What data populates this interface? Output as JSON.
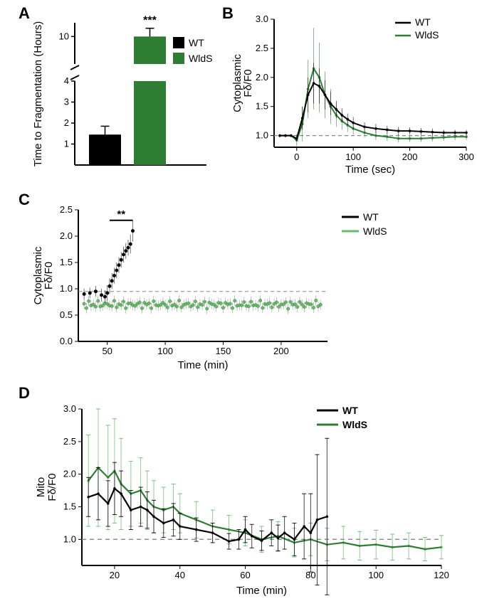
{
  "global": {
    "colors": {
      "wt": "#000000",
      "wlds": "#2e7d32",
      "wlds_light": "#66bb6a",
      "axis": "#000000",
      "grid_dash": "#888888",
      "bg": "#ffffff"
    },
    "fonts": {
      "panel_label": 22,
      "axis_label": 15,
      "tick": 13,
      "legend": 14
    }
  },
  "panelA": {
    "label": "A",
    "type": "bar",
    "title_y": "Time to Fragmentation (Hours)",
    "categories": [
      "WT",
      "WldS"
    ],
    "values": [
      1.45,
      10.0
    ],
    "errors": [
      0.4,
      0.6
    ],
    "bar_colors": [
      "#000000",
      "#2e7d32"
    ],
    "ylim_lower": [
      0,
      4
    ],
    "ylim_upper": [
      8,
      11
    ],
    "yticks_lower": [
      1,
      2,
      3,
      4
    ],
    "yticks_upper": [
      10
    ],
    "axis_break": true,
    "significance": "***",
    "legend": [
      "WT",
      "WldS"
    ]
  },
  "panelB": {
    "label": "B",
    "type": "line",
    "xlabel": "Time (sec)",
    "ylabel": "Cytoplasmic\nFδ/F0",
    "xlim": [
      -40,
      300
    ],
    "ylim": [
      0.8,
      3.0
    ],
    "xticks": [
      0,
      100,
      200,
      300
    ],
    "yticks": [
      1.0,
      1.5,
      2.0,
      2.5,
      3.0
    ],
    "baseline": 1.0,
    "legend": [
      "WT",
      "WldS"
    ],
    "series": {
      "WT": {
        "color": "#000000",
        "x": [
          -30,
          -20,
          -10,
          0,
          10,
          20,
          30,
          40,
          50,
          60,
          70,
          80,
          90,
          100,
          120,
          140,
          160,
          180,
          200,
          220,
          240,
          260,
          280,
          300
        ],
        "y": [
          1.0,
          1.0,
          1.0,
          0.95,
          1.3,
          1.7,
          1.9,
          1.85,
          1.7,
          1.55,
          1.45,
          1.35,
          1.28,
          1.22,
          1.15,
          1.12,
          1.1,
          1.08,
          1.08,
          1.07,
          1.06,
          1.05,
          1.05,
          1.05
        ],
        "err": [
          0.02,
          0.02,
          0.02,
          0.05,
          0.2,
          0.3,
          0.35,
          0.3,
          0.25,
          0.2,
          0.15,
          0.12,
          0.1,
          0.1,
          0.08,
          0.08,
          0.07,
          0.07,
          0.06,
          0.06,
          0.06,
          0.05,
          0.05,
          0.05
        ]
      },
      "WldS": {
        "color": "#2e7d32",
        "x": [
          -30,
          -20,
          -10,
          0,
          10,
          20,
          30,
          40,
          50,
          60,
          70,
          80,
          90,
          100,
          120,
          140,
          160,
          180,
          200,
          220,
          240,
          260,
          280,
          300
        ],
        "y": [
          1.0,
          1.0,
          1.0,
          0.92,
          1.2,
          1.8,
          2.15,
          2.0,
          1.7,
          1.5,
          1.35,
          1.25,
          1.18,
          1.12,
          1.05,
          1.0,
          0.98,
          0.95,
          0.95,
          0.95,
          0.96,
          0.97,
          0.98,
          0.98
        ],
        "err": [
          0.03,
          0.03,
          0.03,
          0.1,
          0.3,
          0.5,
          0.7,
          0.6,
          0.4,
          0.3,
          0.2,
          0.15,
          0.12,
          0.1,
          0.08,
          0.08,
          0.07,
          0.07,
          0.06,
          0.06,
          0.06,
          0.06,
          0.06,
          0.06
        ]
      }
    }
  },
  "panelC": {
    "label": "C",
    "type": "scatter_line",
    "xlabel": "Time (min)",
    "ylabel": "Cytoplasmic\nFδ/F0",
    "xlim": [
      25,
      240
    ],
    "ylim": [
      0.0,
      2.5
    ],
    "xticks": [
      50,
      100,
      150,
      200
    ],
    "yticks": [
      0.0,
      0.5,
      1.0,
      1.5,
      2.0,
      2.5
    ],
    "baseline": 0.95,
    "legend": [
      "WT",
      "WldS"
    ],
    "significance": "**",
    "sig_xrange": [
      52,
      72
    ],
    "series": {
      "WT": {
        "color": "#000000",
        "x": [
          30,
          35,
          40,
          45,
          48,
          50,
          52,
          54,
          56,
          58,
          60,
          62,
          64,
          66,
          68,
          70,
          72
        ],
        "y": [
          0.9,
          0.92,
          0.95,
          0.88,
          0.85,
          0.92,
          1.05,
          1.15,
          1.25,
          1.35,
          1.45,
          1.55,
          1.65,
          1.72,
          1.78,
          1.85,
          2.1
        ],
        "err": [
          0.1,
          0.1,
          0.1,
          0.12,
          0.12,
          0.15,
          0.15,
          0.15,
          0.15,
          0.15,
          0.15,
          0.15,
          0.15,
          0.15,
          0.15,
          0.18,
          0.2
        ]
      },
      "WldS": {
        "color": "#66bb6a",
        "x_start": 30,
        "x_end": 235,
        "x_step": 2,
        "y_mean": 0.7,
        "y_noise": 0.08,
        "err": 0.1
      }
    }
  },
  "panelD": {
    "label": "D",
    "type": "line",
    "xlabel": "Time (min)",
    "ylabel": "Mito\nFδ/F0",
    "xlim": [
      10,
      120
    ],
    "ylim": [
      0.6,
      3.0
    ],
    "xticks": [
      20,
      40,
      60,
      80,
      100,
      120
    ],
    "yticks": [
      1.0,
      1.5,
      2.0,
      2.5,
      3.0
    ],
    "baseline": 1.0,
    "legend": [
      "WT",
      "WldS"
    ],
    "series": {
      "WT": {
        "color": "#000000",
        "x": [
          12,
          15,
          18,
          20,
          22,
          25,
          28,
          30,
          32,
          35,
          38,
          40,
          45,
          50,
          55,
          58,
          60,
          62,
          65,
          68,
          70,
          72,
          75,
          78,
          80,
          82,
          85
        ],
        "y": [
          1.65,
          1.7,
          1.55,
          1.78,
          1.7,
          1.45,
          1.5,
          1.45,
          1.35,
          1.25,
          1.3,
          1.2,
          1.15,
          1.1,
          0.97,
          1.0,
          1.15,
          1.05,
          0.98,
          1.1,
          1.02,
          1.1,
          1.0,
          1.2,
          1.1,
          1.3,
          1.35
        ],
        "err": [
          0.3,
          0.4,
          0.35,
          0.4,
          0.35,
          0.3,
          0.3,
          0.28,
          0.25,
          0.22,
          0.25,
          0.2,
          0.18,
          0.15,
          0.12,
          0.15,
          0.2,
          0.18,
          0.15,
          0.2,
          0.2,
          0.25,
          0.25,
          0.5,
          0.6,
          1.0,
          1.2
        ]
      },
      "WldS": {
        "color": "#66bb6a",
        "x": [
          12,
          15,
          18,
          20,
          22,
          25,
          28,
          30,
          32,
          35,
          38,
          40,
          45,
          50,
          55,
          60,
          65,
          70,
          75,
          80,
          85,
          90,
          95,
          100,
          105,
          110,
          115,
          120
        ],
        "y": [
          1.9,
          2.1,
          1.95,
          2.05,
          1.85,
          1.7,
          1.75,
          1.6,
          1.5,
          1.45,
          1.5,
          1.4,
          1.3,
          1.2,
          1.15,
          1.1,
          1.0,
          1.05,
          0.95,
          1.0,
          0.92,
          0.95,
          0.9,
          0.92,
          0.88,
          0.9,
          0.85,
          0.88
        ],
        "err": [
          0.7,
          0.9,
          0.8,
          0.8,
          0.7,
          0.5,
          0.5,
          0.45,
          0.4,
          0.35,
          0.35,
          0.3,
          0.28,
          0.25,
          0.22,
          0.2,
          0.2,
          0.22,
          0.22,
          0.25,
          0.25,
          0.25,
          0.22,
          0.22,
          0.2,
          0.2,
          0.18,
          0.18
        ]
      }
    }
  }
}
